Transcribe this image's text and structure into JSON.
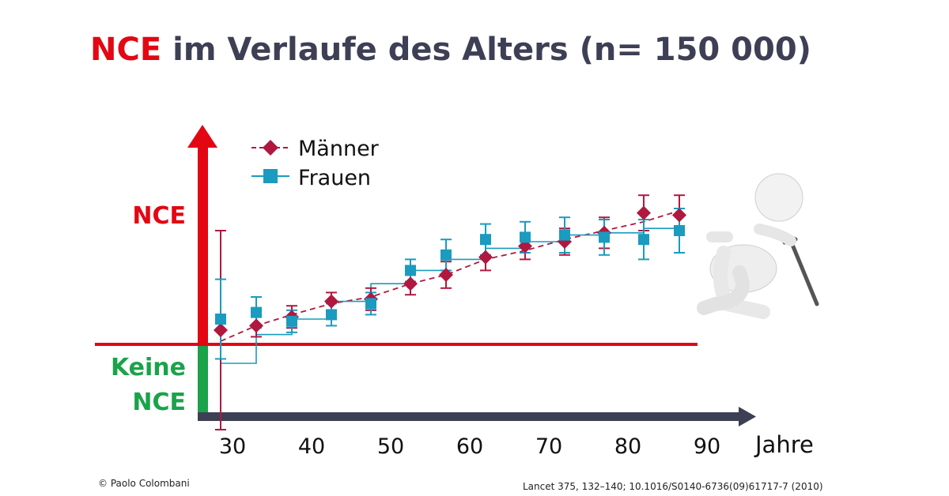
{
  "title": {
    "accent": "NCE",
    "rest": "im Verlaufe des Alters (n= 150 000)"
  },
  "y_labels": {
    "top": "NCE",
    "bottom_line1": "Keine",
    "bottom_line2": "NCE"
  },
  "x_unit": "Jahre",
  "credit_left": "© Paolo Colombani",
  "credit_right": "Lancet  375, 132–140; 10.1016/S0140-6736(09)61717-7  (2010)",
  "colors": {
    "red": "#e30613",
    "green": "#1aa34a",
    "men": "#b0183f",
    "women": "#1a9bbf",
    "axis": "#3d3f55"
  },
  "chart_data": {
    "type": "scatter",
    "x_ticks": [
      30,
      40,
      50,
      60,
      70,
      80,
      90
    ],
    "xlim": [
      25,
      95
    ],
    "legend": [
      "Männer",
      "Frauen"
    ],
    "series": [
      {
        "name": "Männer",
        "marker": "diamond",
        "x": [
          28.5,
          33,
          37.5,
          42.5,
          47.5,
          52.5,
          57,
          62,
          67,
          72,
          77,
          82,
          86.5
        ],
        "y": [
          1.0,
          1.02,
          1.06,
          1.13,
          1.14,
          1.21,
          1.25,
          1.33,
          1.38,
          1.4,
          1.44,
          1.53,
          1.52
        ],
        "err": [
          0.45,
          0.05,
          0.05,
          0.04,
          0.05,
          0.05,
          0.06,
          0.06,
          0.06,
          0.06,
          0.07,
          0.08,
          0.09
        ]
      },
      {
        "name": "Frauen",
        "marker": "square",
        "x": [
          28.5,
          33,
          37.5,
          42.5,
          47.5,
          52.5,
          57,
          62,
          67,
          72,
          77,
          82,
          86.5
        ],
        "y": [
          1.05,
          1.08,
          1.04,
          1.07,
          1.12,
          1.27,
          1.34,
          1.41,
          1.42,
          1.43,
          1.42,
          1.41,
          1.45
        ],
        "err": [
          0.18,
          0.07,
          0.05,
          0.05,
          0.05,
          0.05,
          0.07,
          0.07,
          0.07,
          0.08,
          0.08,
          0.09,
          0.1
        ]
      }
    ],
    "trend": {
      "Männer": {
        "x": [
          28.5,
          33,
          37.5,
          42.5,
          47.5,
          52.5,
          57,
          62,
          67,
          72,
          77,
          82,
          86.5
        ],
        "y": [
          0.95,
          1.02,
          1.07,
          1.12,
          1.15,
          1.21,
          1.25,
          1.32,
          1.36,
          1.41,
          1.45,
          1.49,
          1.54
        ]
      },
      "Frauen": {
        "x": [
          28.5,
          33,
          37.5,
          42.5,
          47.5,
          52.5,
          57,
          62,
          67,
          72,
          77,
          82,
          86.5
        ],
        "y": [
          0.85,
          0.98,
          1.05,
          1.13,
          1.21,
          1.27,
          1.32,
          1.37,
          1.4,
          1.43,
          1.44,
          1.46,
          1.47
        ]
      }
    },
    "threshold": 0.9
  }
}
